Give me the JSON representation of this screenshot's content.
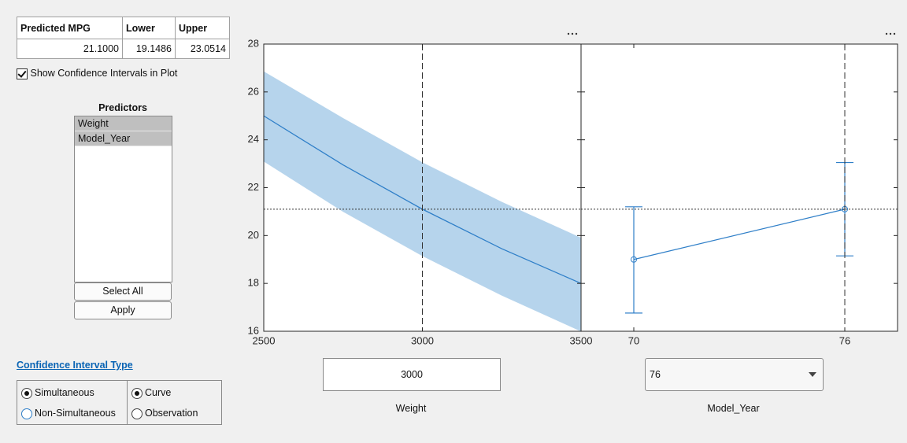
{
  "table": {
    "columns": [
      "Predicted MPG",
      "Lower",
      "Upper"
    ],
    "rows": [
      [
        "21.1000",
        "19.1486",
        "23.0514"
      ]
    ]
  },
  "show_ci": {
    "label": "Show Confidence Intervals in Plot",
    "checked": true
  },
  "predictors": {
    "title": "Predictors",
    "items": [
      {
        "label": "Weight",
        "selected": true
      },
      {
        "label": "Model_Year",
        "selected": true
      }
    ]
  },
  "buttons": [
    "Select All",
    "Apply"
  ],
  "ci_type": {
    "title": "Confidence Interval Type",
    "bounds": [
      {
        "label": "Simultaneous",
        "selected": true
      },
      {
        "label": "Non-Simultaneous",
        "selected": false
      }
    ],
    "prediction": [
      {
        "label": "Curve",
        "selected": true
      },
      {
        "label": "Observation",
        "selected": false
      }
    ]
  },
  "controls": [
    {
      "label": "Weight",
      "value": "3000",
      "kind": "edit"
    },
    {
      "label": "Model_Year",
      "value": "76",
      "kind": "dropdown"
    }
  ],
  "chart_data": [
    {
      "type": "band-line",
      "x": [
        2500,
        2750,
        3000,
        3250,
        3500
      ],
      "values": [
        25.0,
        22.95,
        21.1,
        19.45,
        18.0
      ],
      "lower": [
        23.1,
        21.0,
        19.15,
        17.5,
        16.0
      ],
      "upper": [
        26.85,
        24.9,
        23.05,
        21.4,
        19.9
      ],
      "color": "#2f7fc8",
      "band_color": "#b6d4ec",
      "xlim": [
        2500,
        3500
      ],
      "xticks": [
        2500,
        3000,
        3500
      ],
      "ylim": [
        16,
        28
      ],
      "yticks": [
        16,
        18,
        20,
        22,
        24,
        26,
        28
      ],
      "vline": 3000,
      "hline": 21.1
    },
    {
      "type": "errorbar",
      "x": [
        70,
        76
      ],
      "values": [
        19.0,
        21.1
      ],
      "lower": [
        16.76,
        19.15
      ],
      "upper": [
        21.2,
        23.05
      ],
      "color": "#2f7fc8",
      "xlim": [
        68.5,
        77.5
      ],
      "xticks": [
        70,
        76
      ],
      "ylim": [
        16,
        28
      ],
      "vline": 76,
      "hline": 21.1
    }
  ]
}
